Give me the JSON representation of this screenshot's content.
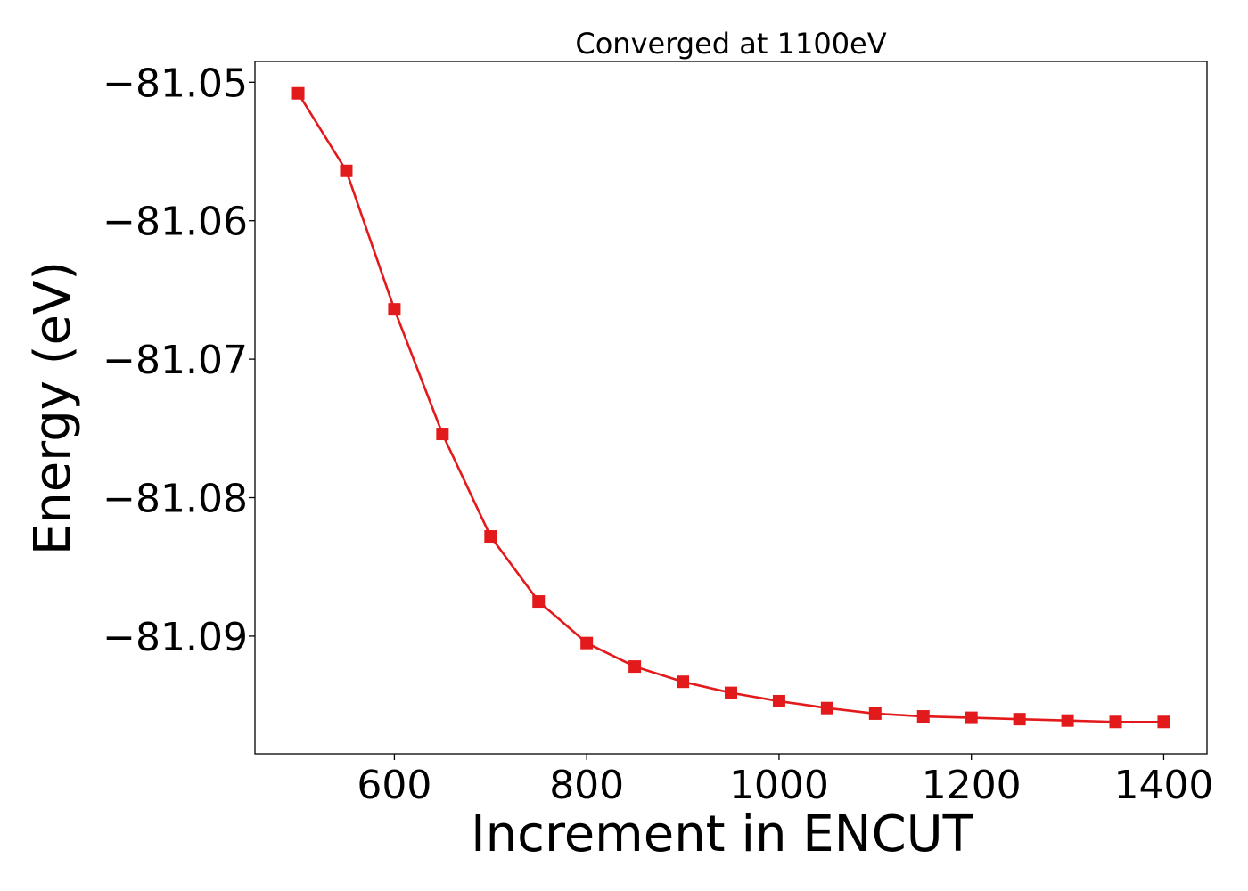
{
  "chart_data": {
    "type": "line",
    "title": "Converged at 1100eV",
    "xlabel": "Increment in ENCUT",
    "ylabel": "Energy (eV)",
    "x": [
      500,
      550,
      600,
      650,
      700,
      750,
      800,
      850,
      900,
      950,
      1000,
      1050,
      1100,
      1150,
      1200,
      1250,
      1300,
      1350,
      1400
    ],
    "series": [
      {
        "name": "",
        "color": "#e31a1c",
        "marker": "square",
        "values": [
          -81.0508,
          -81.0564,
          -81.0664,
          -81.0754,
          -81.0828,
          -81.0875,
          -81.0905,
          -81.0922,
          -81.0933,
          -81.0941,
          -81.0947,
          -81.0952,
          -81.0956,
          -81.0958,
          -81.0959,
          -81.096,
          -81.0961,
          -81.0962,
          -81.0962
        ]
      }
    ],
    "xlim": [
      455,
      1445
    ],
    "ylim": [
      -81.0985,
      -81.0485
    ],
    "xticks": [
      600,
      800,
      1000,
      1200,
      1400
    ],
    "xtick_labels": [
      "600",
      "800",
      "1000",
      "1200",
      "1400"
    ],
    "yticks": [
      -81.05,
      -81.06,
      -81.07,
      -81.08,
      -81.09
    ],
    "ytick_labels": [
      "−81.05",
      "−81.06",
      "−81.07",
      "−81.08",
      "−81.09"
    ],
    "grid": false,
    "legend": "none"
  }
}
